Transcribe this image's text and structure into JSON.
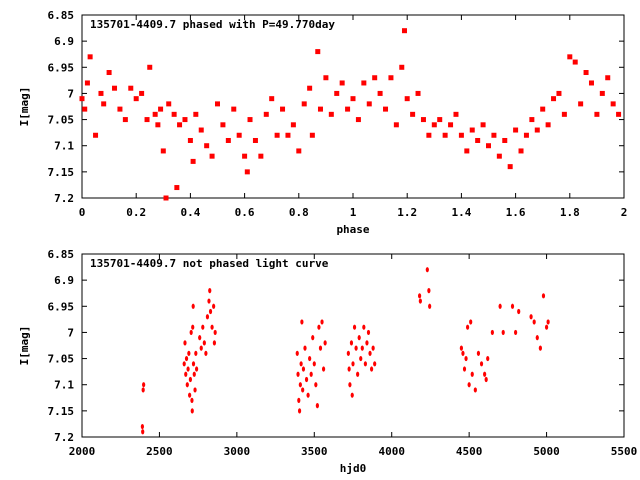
{
  "chart_data": [
    {
      "type": "scatter",
      "title": "135701-4409.7 phased with P=49.770day",
      "xlabel": "phase",
      "ylabel": "I[mag]",
      "xlim": [
        0,
        2
      ],
      "ylim": [
        7.2,
        6.85
      ],
      "y_inverted": true,
      "grid": false,
      "marker_color": "#ff0000",
      "xticks": [
        "0",
        "0.2",
        "0.4",
        "0.6",
        "0.8",
        "1",
        "1.2",
        "1.4",
        "1.6",
        "1.8",
        "2"
      ],
      "yticks": [
        "6.85",
        "6.9",
        "6.95",
        "7",
        "7.05",
        "7.1",
        "7.15",
        "7.2"
      ],
      "series": [
        {
          "points": [
            [
              0.0,
              7.01
            ],
            [
              0.01,
              7.03
            ],
            [
              0.02,
              6.98
            ],
            [
              0.03,
              6.93
            ],
            [
              0.05,
              7.08
            ],
            [
              0.07,
              7.0
            ],
            [
              0.08,
              7.02
            ],
            [
              0.1,
              6.96
            ],
            [
              0.12,
              6.99
            ],
            [
              0.14,
              7.03
            ],
            [
              0.16,
              7.05
            ],
            [
              0.18,
              6.99
            ],
            [
              0.2,
              7.01
            ],
            [
              0.22,
              7.0
            ],
            [
              0.24,
              7.05
            ],
            [
              0.25,
              6.95
            ],
            [
              0.27,
              7.04
            ],
            [
              0.28,
              7.06
            ],
            [
              0.29,
              7.03
            ],
            [
              0.3,
              7.11
            ],
            [
              0.31,
              7.2
            ],
            [
              0.32,
              7.02
            ],
            [
              0.34,
              7.04
            ],
            [
              0.35,
              7.18
            ],
            [
              0.36,
              7.06
            ],
            [
              0.38,
              7.05
            ],
            [
              0.4,
              7.09
            ],
            [
              0.41,
              7.13
            ],
            [
              0.42,
              7.04
            ],
            [
              0.44,
              7.07
            ],
            [
              0.46,
              7.1
            ],
            [
              0.48,
              7.12
            ],
            [
              0.5,
              7.02
            ],
            [
              0.52,
              7.06
            ],
            [
              0.54,
              7.09
            ],
            [
              0.56,
              7.03
            ],
            [
              0.58,
              7.08
            ],
            [
              0.6,
              7.12
            ],
            [
              0.61,
              7.15
            ],
            [
              0.62,
              7.05
            ],
            [
              0.64,
              7.09
            ],
            [
              0.66,
              7.12
            ],
            [
              0.68,
              7.04
            ],
            [
              0.7,
              7.01
            ],
            [
              0.72,
              7.08
            ],
            [
              0.74,
              7.03
            ],
            [
              0.76,
              7.08
            ],
            [
              0.78,
              7.06
            ],
            [
              0.8,
              7.11
            ],
            [
              0.82,
              7.02
            ],
            [
              0.84,
              6.99
            ],
            [
              0.85,
              7.08
            ],
            [
              0.87,
              6.92
            ],
            [
              0.88,
              7.03
            ],
            [
              0.9,
              6.97
            ],
            [
              0.92,
              7.04
            ],
            [
              0.94,
              7.0
            ],
            [
              0.96,
              6.98
            ],
            [
              0.98,
              7.03
            ],
            [
              1.0,
              7.01
            ],
            [
              1.02,
              7.05
            ],
            [
              1.04,
              6.98
            ],
            [
              1.06,
              7.02
            ],
            [
              1.08,
              6.97
            ],
            [
              1.1,
              7.0
            ],
            [
              1.12,
              7.03
            ],
            [
              1.14,
              6.97
            ],
            [
              1.16,
              7.06
            ],
            [
              1.18,
              6.95
            ],
            [
              1.19,
              6.88
            ],
            [
              1.2,
              7.01
            ],
            [
              1.22,
              7.04
            ],
            [
              1.24,
              7.0
            ],
            [
              1.26,
              7.05
            ],
            [
              1.28,
              7.08
            ],
            [
              1.3,
              7.06
            ],
            [
              1.32,
              7.05
            ],
            [
              1.34,
              7.08
            ],
            [
              1.36,
              7.06
            ],
            [
              1.38,
              7.04
            ],
            [
              1.4,
              7.08
            ],
            [
              1.42,
              7.11
            ],
            [
              1.44,
              7.07
            ],
            [
              1.46,
              7.09
            ],
            [
              1.48,
              7.06
            ],
            [
              1.5,
              7.1
            ],
            [
              1.52,
              7.08
            ],
            [
              1.54,
              7.12
            ],
            [
              1.56,
              7.09
            ],
            [
              1.58,
              7.14
            ],
            [
              1.6,
              7.07
            ],
            [
              1.62,
              7.11
            ],
            [
              1.64,
              7.08
            ],
            [
              1.66,
              7.05
            ],
            [
              1.68,
              7.07
            ],
            [
              1.7,
              7.03
            ],
            [
              1.72,
              7.06
            ],
            [
              1.74,
              7.01
            ],
            [
              1.76,
              7.0
            ],
            [
              1.78,
              7.04
            ],
            [
              1.8,
              6.93
            ],
            [
              1.82,
              6.94
            ],
            [
              1.84,
              7.02
            ],
            [
              1.86,
              6.96
            ],
            [
              1.88,
              6.98
            ],
            [
              1.9,
              7.04
            ],
            [
              1.92,
              7.0
            ],
            [
              1.94,
              6.97
            ],
            [
              1.96,
              7.02
            ],
            [
              1.98,
              7.04
            ]
          ]
        }
      ]
    },
    {
      "type": "scatter",
      "title": "135701-4409.7 not phased light curve",
      "xlabel": "hjd0",
      "ylabel": "I[mag]",
      "xlim": [
        2000,
        5500
      ],
      "ylim": [
        7.2,
        6.85
      ],
      "y_inverted": true,
      "grid": false,
      "marker_color": "#ff0000",
      "xticks": [
        "2000",
        "2500",
        "3000",
        "3500",
        "4000",
        "4500",
        "5000",
        "5500"
      ],
      "yticks": [
        "6.85",
        "6.9",
        "6.95",
        "7",
        "7.05",
        "7.1",
        "7.15",
        "7.2"
      ],
      "series": [
        {
          "points": [
            [
              2390,
              7.18
            ],
            [
              2392,
              7.19
            ],
            [
              2395,
              7.11
            ],
            [
              2398,
              7.1
            ],
            [
              2660,
              7.06
            ],
            [
              2665,
              7.02
            ],
            [
              2670,
              7.08
            ],
            [
              2675,
              7.05
            ],
            [
              2680,
              7.1
            ],
            [
              2685,
              7.07
            ],
            [
              2690,
              7.04
            ],
            [
              2695,
              7.12
            ],
            [
              2700,
              7.09
            ],
            [
              2705,
              7.0
            ],
            [
              2710,
              7.13
            ],
            [
              2712,
              7.15
            ],
            [
              2715,
              6.99
            ],
            [
              2718,
              6.95
            ],
            [
              2720,
              7.06
            ],
            [
              2725,
              7.08
            ],
            [
              2730,
              7.11
            ],
            [
              2735,
              7.04
            ],
            [
              2740,
              7.07
            ],
            [
              2760,
              7.01
            ],
            [
              2770,
              7.03
            ],
            [
              2780,
              6.99
            ],
            [
              2790,
              7.02
            ],
            [
              2800,
              7.04
            ],
            [
              2810,
              6.97
            ],
            [
              2820,
              6.94
            ],
            [
              2825,
              6.92
            ],
            [
              2830,
              6.96
            ],
            [
              2840,
              6.99
            ],
            [
              2850,
              6.95
            ],
            [
              2855,
              7.02
            ],
            [
              2860,
              7.0
            ],
            [
              3390,
              7.04
            ],
            [
              3395,
              7.08
            ],
            [
              3400,
              7.13
            ],
            [
              3405,
              7.15
            ],
            [
              3410,
              7.1
            ],
            [
              3415,
              7.06
            ],
            [
              3420,
              6.98
            ],
            [
              3425,
              7.11
            ],
            [
              3430,
              7.07
            ],
            [
              3440,
              7.03
            ],
            [
              3450,
              7.09
            ],
            [
              3460,
              7.12
            ],
            [
              3470,
              7.05
            ],
            [
              3480,
              7.08
            ],
            [
              3490,
              7.01
            ],
            [
              3500,
              7.06
            ],
            [
              3510,
              7.1
            ],
            [
              3520,
              7.14
            ],
            [
              3530,
              6.99
            ],
            [
              3540,
              7.03
            ],
            [
              3550,
              6.98
            ],
            [
              3560,
              7.07
            ],
            [
              3570,
              7.02
            ],
            [
              3720,
              7.04
            ],
            [
              3725,
              7.07
            ],
            [
              3730,
              7.1
            ],
            [
              3740,
              7.02
            ],
            [
              3745,
              7.12
            ],
            [
              3750,
              7.06
            ],
            [
              3760,
              6.99
            ],
            [
              3770,
              7.03
            ],
            [
              3780,
              7.08
            ],
            [
              3790,
              7.01
            ],
            [
              3800,
              7.05
            ],
            [
              3810,
              7.03
            ],
            [
              3820,
              6.99
            ],
            [
              3830,
              7.06
            ],
            [
              3840,
              7.02
            ],
            [
              3850,
              7.0
            ],
            [
              3860,
              7.04
            ],
            [
              3870,
              7.07
            ],
            [
              3880,
              7.03
            ],
            [
              3890,
              7.06
            ],
            [
              4180,
              6.93
            ],
            [
              4185,
              6.94
            ],
            [
              4230,
              6.88
            ],
            [
              4240,
              6.92
            ],
            [
              4245,
              6.95
            ],
            [
              4450,
              7.03
            ],
            [
              4460,
              7.04
            ],
            [
              4470,
              7.07
            ],
            [
              4480,
              7.05
            ],
            [
              4490,
              6.99
            ],
            [
              4500,
              7.1
            ],
            [
              4510,
              6.98
            ],
            [
              4520,
              7.08
            ],
            [
              4540,
              7.11
            ],
            [
              4560,
              7.04
            ],
            [
              4580,
              7.06
            ],
            [
              4600,
              7.08
            ],
            [
              4610,
              7.09
            ],
            [
              4620,
              7.05
            ],
            [
              4650,
              7.0
            ],
            [
              4700,
              6.95
            ],
            [
              4720,
              7.0
            ],
            [
              4780,
              6.95
            ],
            [
              4800,
              7.0
            ],
            [
              4820,
              6.96
            ],
            [
              4900,
              6.97
            ],
            [
              4920,
              6.98
            ],
            [
              4940,
              7.01
            ],
            [
              4960,
              7.03
            ],
            [
              4980,
              6.93
            ],
            [
              5000,
              6.99
            ],
            [
              5010,
              6.98
            ]
          ]
        }
      ]
    }
  ]
}
